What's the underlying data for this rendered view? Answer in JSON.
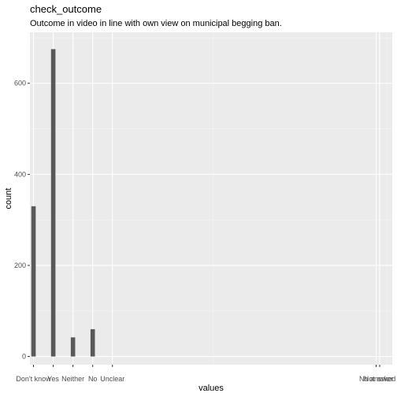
{
  "chart_data": {
    "type": "bar",
    "title": "check_outcome",
    "subtitle": "Outcome in video in line with own view on municipal begging ban.",
    "xlabel": "values",
    "ylabel": "count",
    "categories": [
      "Don't know",
      "Yes",
      "Neither",
      "No",
      "Unclear",
      "No answer",
      "Not asked"
    ],
    "values": [
      330,
      675,
      42,
      60,
      0,
      0,
      0
    ],
    "y_ticks": [
      0,
      200,
      400,
      600
    ],
    "ylim": [
      -18,
      712
    ],
    "grid": true,
    "legend": "none",
    "colors": {
      "bar": "#595959",
      "panel": "#ebebeb",
      "grid_major": "#ffffff"
    }
  }
}
